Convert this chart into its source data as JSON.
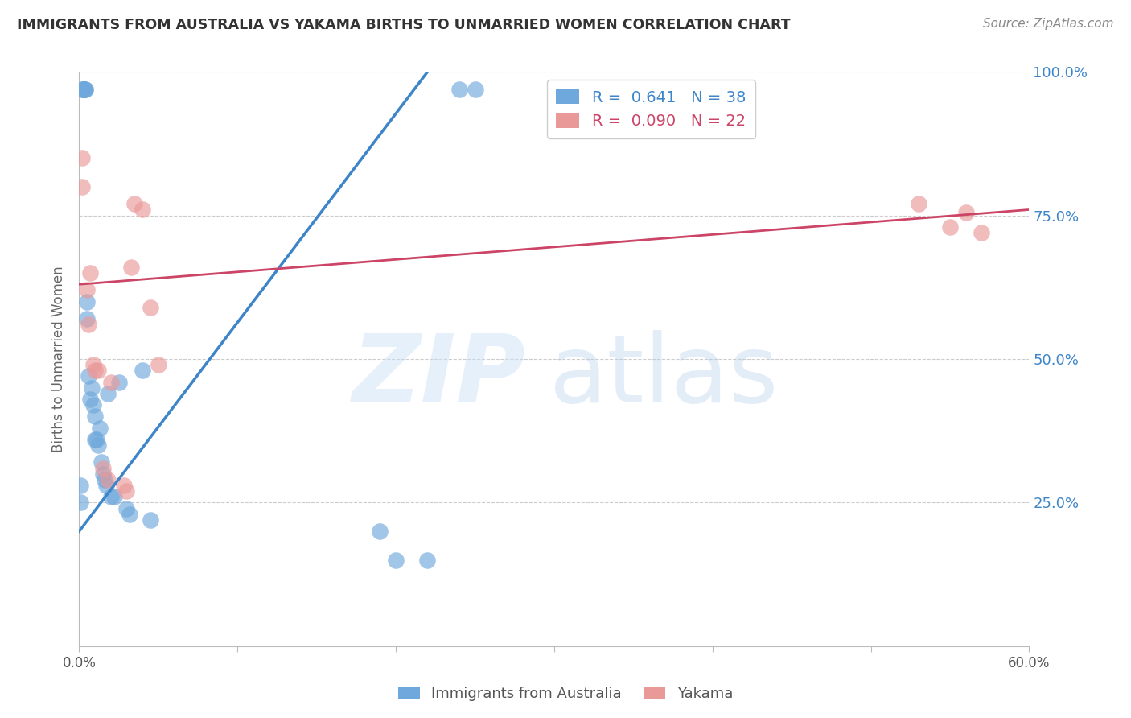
{
  "title": "IMMIGRANTS FROM AUSTRALIA VS YAKAMA BIRTHS TO UNMARRIED WOMEN CORRELATION CHART",
  "source": "Source: ZipAtlas.com",
  "ylabel": "Births to Unmarried Women",
  "xlim": [
    0.0,
    0.6
  ],
  "ylim": [
    0.0,
    1.0
  ],
  "xticks": [
    0.0,
    0.1,
    0.2,
    0.3,
    0.4,
    0.5,
    0.6
  ],
  "xtick_labels": [
    "0.0%",
    "",
    "",
    "",
    "",
    "",
    "60.0%"
  ],
  "yticks": [
    0.0,
    0.25,
    0.5,
    0.75,
    1.0
  ],
  "ytick_labels_right": [
    "",
    "25.0%",
    "50.0%",
    "75.0%",
    "100.0%"
  ],
  "blue_color": "#6fa8dc",
  "pink_color": "#ea9999",
  "blue_line_color": "#3d85c8",
  "pink_line_color": "#cc4466",
  "R_blue": "0.641",
  "N_blue": "38",
  "R_pink": "0.090",
  "N_pink": "22",
  "blue_scatter_x": [
    0.002,
    0.003,
    0.003,
    0.003,
    0.003,
    0.003,
    0.004,
    0.004,
    0.005,
    0.005,
    0.006,
    0.007,
    0.008,
    0.009,
    0.01,
    0.01,
    0.011,
    0.012,
    0.013,
    0.014,
    0.015,
    0.016,
    0.017,
    0.018,
    0.02,
    0.022,
    0.025,
    0.03,
    0.032,
    0.04,
    0.045,
    0.19,
    0.2,
    0.22,
    0.24,
    0.25,
    0.001,
    0.001
  ],
  "blue_scatter_y": [
    0.97,
    0.97,
    0.97,
    0.97,
    0.97,
    0.97,
    0.97,
    0.97,
    0.6,
    0.57,
    0.47,
    0.43,
    0.45,
    0.42,
    0.4,
    0.36,
    0.36,
    0.35,
    0.38,
    0.32,
    0.3,
    0.29,
    0.28,
    0.44,
    0.26,
    0.26,
    0.46,
    0.24,
    0.23,
    0.48,
    0.22,
    0.2,
    0.15,
    0.15,
    0.97,
    0.97,
    0.28,
    0.25
  ],
  "pink_scatter_x": [
    0.002,
    0.002,
    0.005,
    0.006,
    0.007,
    0.009,
    0.01,
    0.012,
    0.015,
    0.018,
    0.02,
    0.028,
    0.03,
    0.033,
    0.035,
    0.04,
    0.045,
    0.05,
    0.53,
    0.55,
    0.56,
    0.57
  ],
  "pink_scatter_y": [
    0.85,
    0.8,
    0.62,
    0.56,
    0.65,
    0.49,
    0.48,
    0.48,
    0.31,
    0.29,
    0.46,
    0.28,
    0.27,
    0.66,
    0.77,
    0.76,
    0.59,
    0.49,
    0.77,
    0.73,
    0.755,
    0.72
  ],
  "blue_trend": [
    0.0,
    0.2,
    0.22,
    1.0
  ],
  "pink_trend": [
    0.0,
    0.63,
    0.6,
    0.76
  ],
  "axis_color": "#bbbbbb",
  "grid_color": "#cccccc",
  "label_color_blue": "#3d85c8",
  "label_color_pink": "#cc4466",
  "title_color": "#333333",
  "source_color": "#888888",
  "ylabel_color": "#666666",
  "tick_label_color": "#555555"
}
